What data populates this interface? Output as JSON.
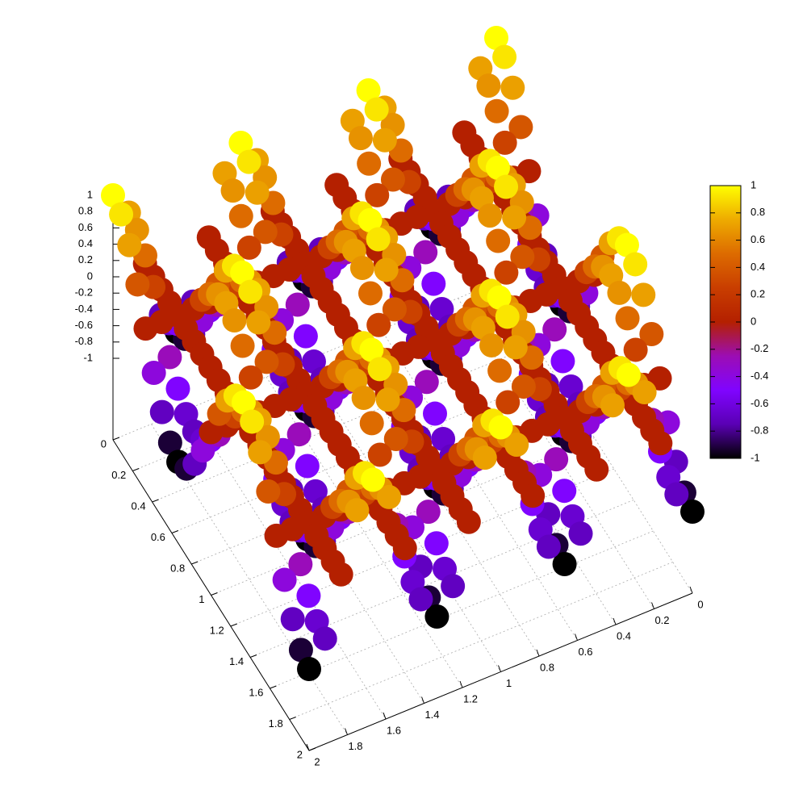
{
  "chart_data": {
    "type": "surface",
    "x": [
      0,
      0.083,
      0.167,
      0.25,
      0.333,
      0.417,
      0.5,
      0.583,
      0.667,
      0.75,
      0.833,
      0.917,
      1,
      1.083,
      1.167,
      1.25,
      1.333,
      1.417,
      1.5,
      1.583,
      1.667,
      1.75,
      1.833,
      1.917,
      2
    ],
    "y": [
      0,
      0.083,
      0.167,
      0.25,
      0.333,
      0.417,
      0.5,
      0.583,
      0.667,
      0.75,
      0.833,
      0.917,
      1,
      1.083,
      1.167,
      1.25,
      1.333,
      1.417,
      1.5,
      1.583,
      1.667,
      1.75,
      1.833,
      1.917,
      2
    ],
    "z": [
      [
        1,
        0.707,
        0,
        -0.707,
        -1,
        -0.707,
        0,
        0.707,
        1,
        0.707,
        0,
        -0.707,
        -1,
        -0.707,
        0,
        0.707,
        1,
        0.707,
        0,
        -0.707,
        -1,
        -0.707,
        0,
        0.707,
        1
      ],
      [
        0.924,
        0.653,
        0,
        -0.653,
        -0.924,
        -0.653,
        0,
        0.653,
        0.924,
        0.653,
        0,
        -0.653,
        -0.924,
        -0.653,
        0,
        0.653,
        0.924,
        0.653,
        0,
        -0.653,
        -0.924,
        -0.653,
        0,
        0.653,
        0.924
      ],
      [
        0.707,
        0.5,
        0,
        -0.5,
        -0.707,
        -0.5,
        0,
        0.5,
        0.707,
        0.5,
        0,
        -0.5,
        -0.707,
        -0.5,
        0,
        0.5,
        0.707,
        0.5,
        0,
        -0.5,
        -0.707,
        -0.5,
        0,
        0.5,
        0.707
      ],
      [
        0.383,
        0.271,
        0,
        -0.271,
        -0.383,
        -0.271,
        0,
        0.271,
        0.383,
        0.271,
        0,
        -0.271,
        -0.383,
        -0.271,
        0,
        0.271,
        0.383,
        0.271,
        0,
        -0.271,
        -0.383,
        -0.271,
        0,
        0.271,
        0.383
      ],
      [
        0,
        0,
        0,
        0,
        0,
        0,
        0,
        0,
        0,
        0,
        0,
        0,
        0,
        0,
        0,
        0,
        0,
        0,
        0,
        0,
        0,
        0,
        0,
        0,
        0
      ],
      [
        -0.383,
        -0.271,
        0,
        0.271,
        0.383,
        0.271,
        0,
        -0.271,
        -0.383,
        -0.271,
        0,
        0.271,
        0.383,
        0.271,
        0,
        -0.271,
        -0.383,
        -0.271,
        0,
        0.271,
        0.383,
        0.271,
        0,
        -0.271,
        -0.383
      ],
      [
        -0.707,
        -0.5,
        0,
        0.5,
        0.707,
        0.5,
        0,
        -0.5,
        -0.707,
        -0.5,
        0,
        0.5,
        0.707,
        0.5,
        0,
        -0.5,
        -0.707,
        -0.5,
        0,
        0.5,
        0.707,
        0.5,
        0,
        -0.5,
        -0.707
      ],
      [
        -0.924,
        -0.653,
        0,
        0.653,
        0.924,
        0.653,
        0,
        -0.653,
        -0.924,
        -0.653,
        0,
        0.653,
        0.924,
        0.653,
        0,
        -0.653,
        -0.924,
        -0.653,
        0,
        0.653,
        0.924,
        0.653,
        0,
        -0.653,
        -0.924
      ],
      [
        -1,
        -0.707,
        0,
        0.707,
        1,
        0.707,
        0,
        -0.707,
        -1,
        -0.707,
        0,
        0.707,
        1,
        0.707,
        0,
        -0.707,
        -1,
        -0.707,
        0,
        0.707,
        1,
        0.707,
        0,
        -0.707,
        -1
      ],
      [
        -0.924,
        -0.653,
        0,
        0.653,
        0.924,
        0.653,
        0,
        -0.653,
        -0.924,
        -0.653,
        0,
        0.653,
        0.924,
        0.653,
        0,
        -0.653,
        -0.924,
        -0.653,
        0,
        0.653,
        0.924,
        0.653,
        0,
        -0.653,
        -0.924
      ],
      [
        -0.707,
        -0.5,
        0,
        0.5,
        0.707,
        0.5,
        0,
        -0.5,
        -0.707,
        -0.5,
        0,
        0.5,
        0.707,
        0.5,
        0,
        -0.5,
        -0.707,
        -0.5,
        0,
        0.5,
        0.707,
        0.5,
        0,
        -0.5,
        -0.707
      ],
      [
        -0.383,
        -0.271,
        0,
        0.271,
        0.383,
        0.271,
        0,
        -0.271,
        -0.383,
        -0.271,
        0,
        0.271,
        0.383,
        0.271,
        0,
        -0.271,
        -0.383,
        -0.271,
        0,
        0.271,
        0.383,
        0.271,
        0,
        -0.271,
        -0.383
      ],
      [
        0,
        0,
        0,
        0,
        0,
        0,
        0,
        0,
        0,
        0,
        0,
        0,
        0,
        0,
        0,
        0,
        0,
        0,
        0,
        0,
        0,
        0,
        0,
        0,
        0
      ],
      [
        0.383,
        0.271,
        0,
        -0.271,
        -0.383,
        -0.271,
        0,
        0.271,
        0.383,
        0.271,
        0,
        -0.271,
        -0.383,
        -0.271,
        0,
        0.271,
        0.383,
        0.271,
        0,
        -0.271,
        -0.383,
        -0.271,
        0,
        0.271,
        0.383
      ],
      [
        0.707,
        0.5,
        0,
        -0.5,
        -0.707,
        -0.5,
        0,
        0.5,
        0.707,
        0.5,
        0,
        -0.5,
        -0.707,
        -0.5,
        0,
        0.5,
        0.707,
        0.5,
        0,
        -0.5,
        -0.707,
        -0.5,
        0,
        0.5,
        0.707
      ],
      [
        0.924,
        0.653,
        0,
        -0.653,
        -0.924,
        -0.653,
        0,
        0.653,
        0.924,
        0.653,
        0,
        -0.653,
        -0.924,
        -0.653,
        0,
        0.653,
        0.924,
        0.653,
        0,
        -0.653,
        -0.924,
        -0.653,
        0,
        0.653,
        0.924
      ],
      [
        1,
        0.707,
        0,
        -0.707,
        -1,
        -0.707,
        0,
        0.707,
        1,
        0.707,
        0,
        -0.707,
        -1,
        -0.707,
        0,
        0.707,
        1,
        0.707,
        0,
        -0.707,
        -1,
        -0.707,
        0,
        0.707,
        1
      ],
      [
        0.924,
        0.653,
        0,
        -0.653,
        -0.924,
        -0.653,
        0,
        0.653,
        0.924,
        0.653,
        0,
        -0.653,
        -0.924,
        -0.653,
        0,
        0.653,
        0.924,
        0.653,
        0,
        -0.653,
        -0.924,
        -0.653,
        0,
        0.653,
        0.924
      ],
      [
        0.707,
        0.5,
        0,
        -0.5,
        -0.707,
        -0.5,
        0,
        0.5,
        0.707,
        0.5,
        0,
        -0.5,
        -0.707,
        -0.5,
        0,
        0.5,
        0.707,
        0.5,
        0,
        -0.5,
        -0.707,
        -0.5,
        0,
        0.5,
        0.707
      ],
      [
        0.383,
        0.271,
        0,
        -0.271,
        -0.383,
        -0.271,
        0,
        0.271,
        0.383,
        0.271,
        0,
        -0.271,
        -0.383,
        -0.271,
        0,
        0.271,
        0.383,
        0.271,
        0,
        -0.271,
        -0.383,
        -0.271,
        0,
        0.271,
        0.383
      ],
      [
        0,
        0,
        0,
        0,
        0,
        0,
        0,
        0,
        0,
        0,
        0,
        0,
        0,
        0,
        0,
        0,
        0,
        0,
        0,
        0,
        0,
        0,
        0,
        0,
        0
      ],
      [
        -0.383,
        -0.271,
        0,
        0.271,
        0.383,
        0.271,
        0,
        -0.271,
        -0.383,
        -0.271,
        0,
        0.271,
        0.383,
        0.271,
        0,
        -0.271,
        -0.383,
        -0.271,
        0,
        0.271,
        0.383,
        0.271,
        0,
        -0.271,
        -0.383
      ],
      [
        -0.707,
        -0.5,
        0,
        0.5,
        0.707,
        0.5,
        0,
        -0.5,
        -0.707,
        -0.5,
        0,
        0.5,
        0.707,
        0.5,
        0,
        -0.5,
        -0.707,
        -0.5,
        0,
        0.5,
        0.707,
        0.5,
        0,
        -0.5,
        -0.707
      ],
      [
        -0.924,
        -0.653,
        0,
        0.653,
        0.924,
        0.653,
        0,
        -0.653,
        -0.924,
        -0.653,
        0,
        0.653,
        0.924,
        0.653,
        0,
        -0.653,
        -0.924,
        -0.653,
        0,
        0.653,
        0.924,
        0.653,
        0,
        -0.653,
        -0.924
      ],
      [
        -1,
        -0.707,
        0,
        0.707,
        1,
        0.707,
        0,
        -0.707,
        -1,
        -0.707,
        0,
        0.707,
        1,
        0.707,
        0,
        -0.707,
        -1,
        -0.707,
        0,
        0.707,
        1,
        0.707,
        0,
        -0.707,
        -1
      ]
    ],
    "xlim": [
      0,
      2
    ],
    "xticks": [
      0,
      0.2,
      0.4,
      0.6,
      0.8,
      1,
      1.2,
      1.4,
      1.6,
      1.8,
      2
    ],
    "ylim": [
      0,
      2
    ],
    "yticks": [
      0,
      0.2,
      0.4,
      0.6,
      0.8,
      1,
      1.2,
      1.4,
      1.6,
      1.8,
      2
    ],
    "zlim": [
      -2,
      1
    ],
    "zticks": [
      -1,
      -0.8,
      -0.6,
      -0.4,
      -0.2,
      0,
      0.2,
      0.4,
      0.6,
      0.8,
      1
    ],
    "cblim": [
      -1,
      1
    ],
    "cbticks": [
      -1,
      -0.8,
      -0.6,
      -0.4,
      -0.2,
      0,
      0.2,
      0.4,
      0.6,
      0.8,
      1
    ],
    "colormap": [
      "#000000",
      "#5a00b4",
      "#8004ff",
      "#9c0db4",
      "#b42000",
      "#c93e00",
      "#dd6b00",
      "#eeab00",
      "#ffff00"
    ],
    "grid": true
  }
}
